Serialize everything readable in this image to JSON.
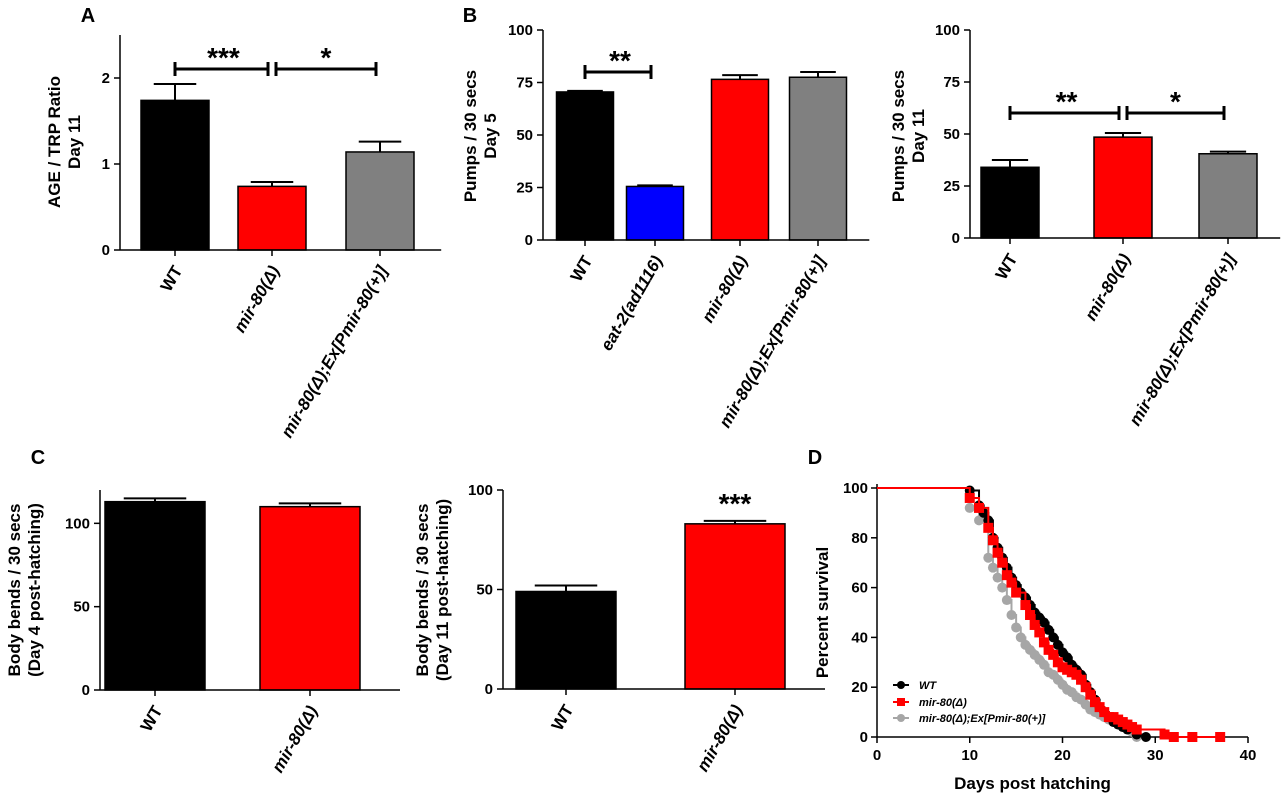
{
  "chart_data": [
    {
      "panel": "A",
      "type": "bar",
      "ylabel": [
        "AGE / TRP Ratio",
        "Day 11"
      ],
      "ylim": [
        0,
        2.5
      ],
      "yticks": [
        "0",
        "1",
        "2"
      ],
      "ytick_values": [
        0,
        1,
        2
      ],
      "categories": [
        "WT",
        "mir-80(Δ)",
        "mir-80(Δ);Ex[Pmir-80(+)]"
      ],
      "italic": [
        false,
        true,
        true
      ],
      "values": [
        1.74,
        0.74,
        1.14
      ],
      "errors": [
        0.19,
        0.05,
        0.12
      ],
      "colors": [
        "#000000",
        "#ff0000",
        "#808080"
      ],
      "significance": [
        {
          "from": 0,
          "to": 1,
          "label": "***"
        },
        {
          "from": 1,
          "to": 2,
          "label": "*"
        }
      ]
    },
    {
      "panel": "B",
      "type": "bar",
      "ylabel": [
        "Pumps / 30 secs",
        "Day 5"
      ],
      "ylim": [
        0,
        100
      ],
      "yticks": [
        "0",
        "25",
        "50",
        "75",
        "100"
      ],
      "ytick_values": [
        0,
        25,
        50,
        75,
        100
      ],
      "categories": [
        "WT",
        "eat-2(ad1116)",
        "mir-80(Δ)",
        "mir-80(Δ);Ex[Pmir-80(+)]"
      ],
      "italic": [
        false,
        true,
        true,
        true
      ],
      "values": [
        70.5,
        25.5,
        76.5,
        77.5
      ],
      "errors": [
        0.5,
        0.5,
        2.0,
        2.5
      ],
      "colors": [
        "#000000",
        "#0000ff",
        "#ff0000",
        "#808080"
      ],
      "significance": [
        {
          "from": 0,
          "to": 1,
          "label": "**"
        }
      ]
    },
    {
      "panel": "",
      "type": "bar",
      "ylabel": [
        "Pumps / 30 secs",
        "Day 11"
      ],
      "ylim": [
        0,
        100
      ],
      "yticks": [
        "0",
        "25",
        "50",
        "75",
        "100"
      ],
      "ytick_values": [
        0,
        25,
        50,
        75,
        100
      ],
      "categories": [
        "WT",
        "mir-80(Δ)",
        "mir-80(Δ);Ex[Pmir-80(+)]"
      ],
      "italic": [
        false,
        true,
        true
      ],
      "values": [
        34,
        48.5,
        40.5
      ],
      "errors": [
        3.5,
        2.0,
        1.0
      ],
      "colors": [
        "#000000",
        "#ff0000",
        "#808080"
      ],
      "significance": [
        {
          "from": 0,
          "to": 1,
          "label": "**"
        },
        {
          "from": 1,
          "to": 2,
          "label": "*"
        }
      ]
    },
    {
      "panel": "C",
      "type": "bar",
      "ylabel": [
        "Body bends / 30 secs",
        "(Day 4 post-hatching)"
      ],
      "ylim": [
        0,
        120
      ],
      "yticks": [
        "0",
        "50",
        "100"
      ],
      "ytick_values": [
        0,
        50,
        100
      ],
      "categories": [
        "WT",
        "mir-80(Δ)"
      ],
      "italic": [
        false,
        true
      ],
      "values": [
        113,
        110
      ],
      "errors": [
        2,
        2
      ],
      "colors": [
        "#000000",
        "#ff0000"
      ],
      "significance": []
    },
    {
      "panel": "",
      "type": "bar",
      "ylabel": [
        "Body bends / 30 secs",
        "(Day 11 post-hatching)"
      ],
      "ylim": [
        0,
        100
      ],
      "yticks": [
        "0",
        "50",
        "100"
      ],
      "ytick_values": [
        0,
        50,
        100
      ],
      "categories": [
        "WT",
        "mir-80(Δ)"
      ],
      "italic": [
        false,
        true
      ],
      "values": [
        49,
        83
      ],
      "errors": [
        3,
        1.5
      ],
      "colors": [
        "#000000",
        "#ff0000"
      ],
      "significance": [],
      "bar_annotations": [
        {
          "index": 1,
          "label": "***"
        }
      ]
    },
    {
      "panel": "D",
      "type": "line",
      "xlabel": "Days post hatching",
      "ylabel": "Percent survival",
      "xlim": [
        0,
        40
      ],
      "ylim": [
        0,
        100
      ],
      "xticks": [
        "0",
        "10",
        "20",
        "30",
        "40"
      ],
      "xtick_values": [
        0,
        10,
        20,
        30,
        40
      ],
      "yticks": [
        "0",
        "20",
        "40",
        "60",
        "80",
        "100"
      ],
      "ytick_values": [
        0,
        20,
        40,
        60,
        80,
        100
      ],
      "legend_position": "bottom-left",
      "series": [
        {
          "name": "WT",
          "color": "#000000",
          "marker": "circle",
          "x": [
            0,
            10,
            11,
            11.5,
            12,
            12.5,
            13,
            13.5,
            14,
            14.5,
            15,
            15.5,
            16,
            16.5,
            17,
            17.5,
            18,
            18.5,
            19,
            19.5,
            20,
            20.5,
            21,
            21.5,
            22,
            22.5,
            23,
            23.5,
            24,
            24.5,
            25,
            25.5,
            26,
            26.5,
            27,
            28,
            29
          ],
          "y": [
            100,
            99,
            93,
            90,
            87,
            80,
            76,
            72,
            68,
            64,
            61,
            58,
            56,
            53,
            50,
            48,
            46,
            43,
            40,
            37,
            34,
            32,
            29,
            27,
            25,
            21,
            18,
            15,
            12,
            10,
            8,
            6,
            5,
            4,
            3,
            1,
            0
          ]
        },
        {
          "name": "mir-80(Δ)",
          "color": "#ff0000",
          "marker": "square",
          "x": [
            0,
            10,
            11,
            12,
            12.5,
            13,
            13.5,
            14,
            14.5,
            15,
            16,
            16.5,
            17,
            17.5,
            18,
            18.5,
            19,
            19.5,
            20,
            20.5,
            21,
            21.5,
            22,
            22.5,
            23,
            23.5,
            24,
            24.5,
            25,
            25.5,
            26,
            26.5,
            27,
            27.5,
            28,
            31,
            32,
            34,
            37
          ],
          "y": [
            100,
            96,
            92,
            84,
            79,
            74,
            70,
            65,
            62,
            58,
            53,
            49,
            45,
            42,
            38,
            35,
            33,
            30,
            28,
            27,
            26,
            25,
            23,
            20,
            17,
            14,
            12,
            10,
            8,
            8,
            7,
            6,
            5,
            4,
            3,
            1,
            0,
            0,
            0
          ]
        },
        {
          "name": "mir-80(Δ);Ex[Pmir-80(+)]",
          "color": "#a6a6a6",
          "marker": "circle",
          "x": [
            0,
            10,
            11,
            12,
            12.5,
            13,
            13.5,
            14,
            14.5,
            15,
            15.5,
            16,
            16.5,
            17,
            17.5,
            18,
            18.5,
            19,
            19.5,
            20,
            20.5,
            21,
            21.5,
            22,
            22.5,
            23,
            23.5,
            24,
            24.5,
            25,
            25.5,
            26,
            26.5,
            27,
            27.5,
            28
          ],
          "y": [
            100,
            92,
            87,
            72,
            68,
            64,
            60,
            55,
            49,
            44,
            40,
            37,
            35,
            33,
            31,
            29,
            26,
            25,
            23,
            21,
            19,
            18,
            16,
            15,
            13,
            11,
            10,
            9,
            8,
            7,
            6,
            5,
            4,
            3,
            2,
            0
          ]
        }
      ]
    }
  ]
}
